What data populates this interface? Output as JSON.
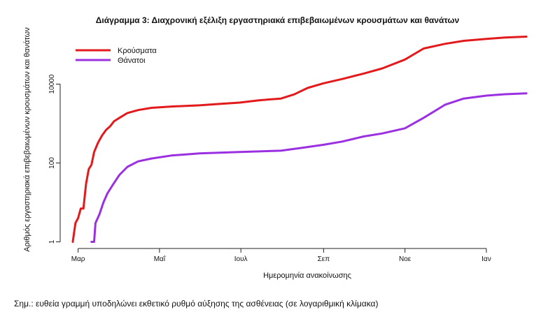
{
  "chart_data": {
    "type": "line",
    "title": "Διάγραμμα 3: Διαχρονική εξέλιξη εργαστηριακά επιβεβαιωμένων κρουσμάτων και θανάτων",
    "xlabel": "Ημερομηνία ανακοίνωσης",
    "ylabel": "Αριθμός εργαστηριακά επιβεβαιωμένων κρουσμάτων και θανάτων",
    "y_scale": "log",
    "ylim": [
      0.8,
      400000
    ],
    "y_ticks": [
      {
        "value": 1,
        "label": "1"
      },
      {
        "value": 100,
        "label": "100"
      },
      {
        "value": 10000,
        "label": "10000"
      }
    ],
    "x_ticks": [
      {
        "date": "2020-03-01",
        "label": "Μαρ"
      },
      {
        "date": "2020-05-01",
        "label": "Μαΐ"
      },
      {
        "date": "2020-07-01",
        "label": "Ιουλ"
      },
      {
        "date": "2020-09-01",
        "label": "Σεπ"
      },
      {
        "date": "2020-11-01",
        "label": "Νοε"
      },
      {
        "date": "2021-01-01",
        "label": "Ιαν"
      }
    ],
    "xlim": [
      "2020-02-15",
      "2021-02-12"
    ],
    "legend_position": "top-left",
    "series": [
      {
        "name": "Κρούσματα",
        "color": "#e31a1c",
        "points": [
          [
            "2020-02-26",
            1
          ],
          [
            "2020-02-28",
            3
          ],
          [
            "2020-03-01",
            4
          ],
          [
            "2020-03-03",
            7
          ],
          [
            "2020-03-05",
            7
          ],
          [
            "2020-03-07",
            30
          ],
          [
            "2020-03-09",
            70
          ],
          [
            "2020-03-11",
            90
          ],
          [
            "2020-03-13",
            190
          ],
          [
            "2020-03-16",
            330
          ],
          [
            "2020-03-19",
            500
          ],
          [
            "2020-03-22",
            690
          ],
          [
            "2020-03-25",
            850
          ],
          [
            "2020-03-28",
            1150
          ],
          [
            "2020-04-01",
            1400
          ],
          [
            "2020-04-07",
            1850
          ],
          [
            "2020-04-15",
            2200
          ],
          [
            "2020-04-25",
            2500
          ],
          [
            "2020-05-10",
            2700
          ],
          [
            "2020-05-31",
            2900
          ],
          [
            "2020-06-15",
            3150
          ],
          [
            "2020-06-30",
            3400
          ],
          [
            "2020-07-15",
            3900
          ],
          [
            "2020-07-31",
            4300
          ],
          [
            "2020-08-10",
            5500
          ],
          [
            "2020-08-20",
            8000
          ],
          [
            "2020-09-01",
            10500
          ],
          [
            "2020-09-15",
            13500
          ],
          [
            "2020-10-01",
            18500
          ],
          [
            "2020-10-15",
            25000
          ],
          [
            "2020-11-01",
            42000
          ],
          [
            "2020-11-15",
            80000
          ],
          [
            "2020-12-01",
            105000
          ],
          [
            "2020-12-15",
            125000
          ],
          [
            "2021-01-01",
            140000
          ],
          [
            "2021-01-15",
            152000
          ],
          [
            "2021-01-31",
            160000
          ]
        ]
      },
      {
        "name": "Θάνατοι",
        "color": "#9b30e0",
        "points": [
          [
            "2020-03-11",
            1
          ],
          [
            "2020-03-13",
            1
          ],
          [
            "2020-03-14",
            3
          ],
          [
            "2020-03-17",
            5
          ],
          [
            "2020-03-20",
            10
          ],
          [
            "2020-03-23",
            17
          ],
          [
            "2020-03-27",
            28
          ],
          [
            "2020-04-01",
            50
          ],
          [
            "2020-04-07",
            80
          ],
          [
            "2020-04-15",
            110
          ],
          [
            "2020-04-25",
            130
          ],
          [
            "2020-05-10",
            155
          ],
          [
            "2020-05-31",
            175
          ],
          [
            "2020-06-30",
            190
          ],
          [
            "2020-07-31",
            205
          ],
          [
            "2020-08-15",
            240
          ],
          [
            "2020-09-01",
            290
          ],
          [
            "2020-09-15",
            350
          ],
          [
            "2020-10-01",
            470
          ],
          [
            "2020-10-15",
            560
          ],
          [
            "2020-11-01",
            760
          ],
          [
            "2020-11-15",
            1400
          ],
          [
            "2020-12-01",
            3000
          ],
          [
            "2020-12-15",
            4300
          ],
          [
            "2021-01-01",
            5100
          ],
          [
            "2021-01-15",
            5550
          ],
          [
            "2021-01-31",
            5850
          ]
        ]
      }
    ]
  },
  "note": "Σημ.: ευθεία γραμμή υποδηλώνει εκθετικό ρυθμό αύξησης της ασθένειας (σε λογαριθμική κλίμακα)"
}
